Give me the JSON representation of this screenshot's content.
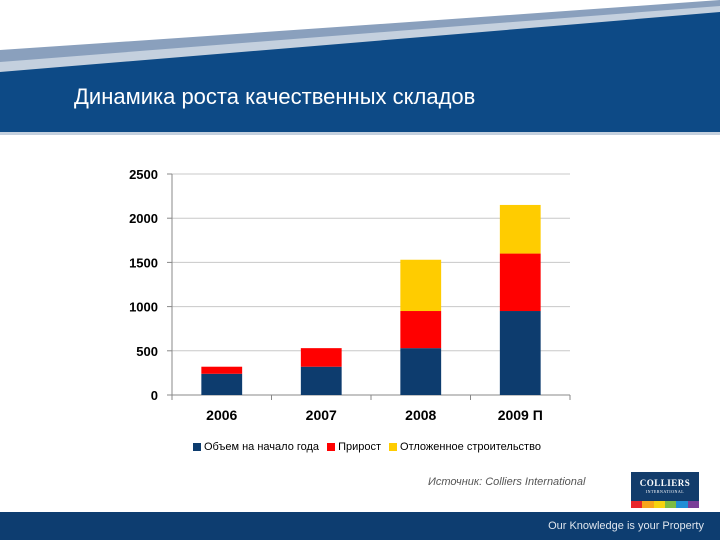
{
  "slide": {
    "title": "Динамика роста качественных складов",
    "source": "Источник: Colliers International",
    "tagline": "Our Knowledge is your Property"
  },
  "logo": {
    "text": "COLLIERS",
    "subtext": "INTERNATIONAL",
    "stripe_colors": [
      "#e8262a",
      "#f7a51c",
      "#f5d30f",
      "#7dbb42",
      "#1f8ed6",
      "#7a3f98"
    ]
  },
  "colors": {
    "header_blue": "#0d4a86",
    "series": [
      "#0d3c6e",
      "#ff0000",
      "#ffcc00"
    ]
  },
  "chart_data": {
    "type": "bar",
    "stacked": true,
    "categories": [
      "2006",
      "2007",
      "2008",
      "2009 П"
    ],
    "series": [
      {
        "name": "Объем на начало года",
        "values": [
          240,
          320,
          530,
          950
        ]
      },
      {
        "name": "Прирост",
        "values": [
          80,
          210,
          420,
          650
        ]
      },
      {
        "name": "Отложенное строительство",
        "values": [
          0,
          0,
          580,
          550
        ]
      }
    ],
    "ylim": [
      0,
      2500
    ],
    "yticks": [
      0,
      500,
      1000,
      1500,
      2000,
      2500
    ],
    "grid": true,
    "legend": "bottom"
  }
}
